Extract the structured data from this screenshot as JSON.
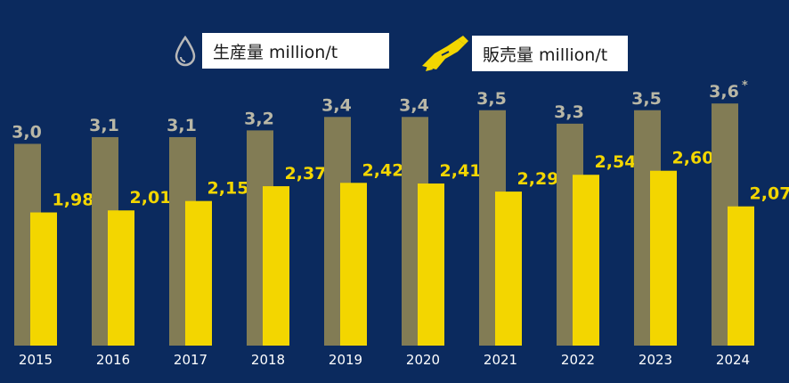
{
  "colors": {
    "background": "#0b2a5e",
    "production": "#827c55",
    "sales": "#f3d600",
    "production_label": "#b9b7a6",
    "sales_label": "#f3d600",
    "year_label": "#ffffff"
  },
  "legend": {
    "production": {
      "label": "生産量 million/t",
      "icon": "water-drop-icon"
    },
    "sales": {
      "label": "販売量 million/t",
      "icon": "fuel-nozzle-icon"
    }
  },
  "chart_data": {
    "type": "bar",
    "categories": [
      "2015",
      "2016",
      "2017",
      "2018",
      "2019",
      "2020",
      "2021",
      "2022",
      "2023",
      "2024"
    ],
    "series": [
      {
        "name": "生産量 million/t",
        "values": [
          3.0,
          3.1,
          3.1,
          3.2,
          3.4,
          3.4,
          3.5,
          3.3,
          3.5,
          3.6
        ],
        "labels": [
          "3,0",
          "3,1",
          "3,1",
          "3,2",
          "3,4",
          "3,4",
          "3,5",
          "3,3",
          "3,5",
          "3,6"
        ]
      },
      {
        "name": "販売量 million/t",
        "values": [
          1.98,
          2.01,
          2.15,
          2.37,
          2.42,
          2.41,
          2.29,
          2.54,
          2.6,
          2.07
        ],
        "labels": [
          "1,98",
          "2,01",
          "2,15",
          "2,37",
          "2,42",
          "2,41",
          "2,29",
          "2,54",
          "2,60",
          "2,07"
        ]
      }
    ],
    "annotations": [
      {
        "category": "2024",
        "series": "生産量 million/t",
        "text": "*"
      }
    ],
    "title": "",
    "xlabel": "",
    "ylabel": "",
    "ylim": [
      0,
      3.6
    ],
    "grid": false,
    "legend_position": "top"
  }
}
